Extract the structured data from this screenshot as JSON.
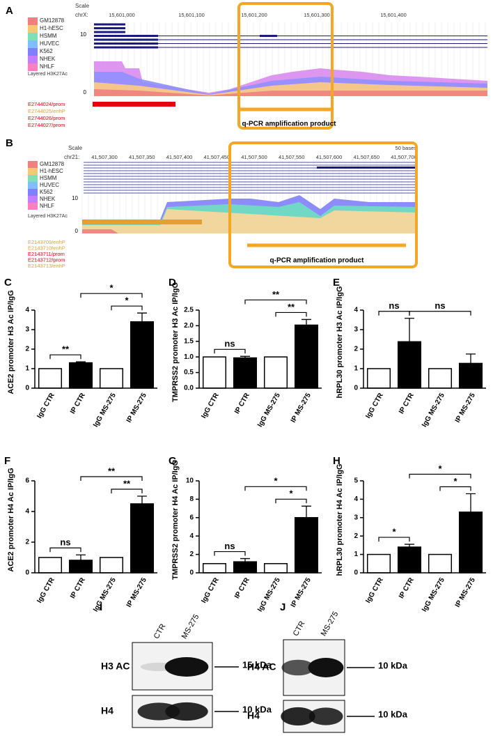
{
  "browser_tracks": [
    {
      "panel": "A",
      "scale_label": "Scale",
      "chrom": "chrX:",
      "positions": [
        "15,601,000",
        "15,601,100",
        "15,601,200",
        "15,601,300",
        "15,601,400"
      ],
      "cell_lines": [
        {
          "name": "GM12878",
          "color": "#f08080"
        },
        {
          "name": "H1-hESC",
          "color": "#f7c873"
        },
        {
          "name": "HSMM",
          "color": "#7fe0b8"
        },
        {
          "name": "HUVEC",
          "color": "#7fbfff"
        },
        {
          "name": "K562",
          "color": "#8080ff"
        },
        {
          "name": "NHEK",
          "color": "#c77dff"
        },
        {
          "name": "NHLF",
          "color": "#ff80c0"
        }
      ],
      "track_label": "Layered H3K27Ac",
      "axis_labels": [
        10,
        0
      ],
      "elements": [
        {
          "label": "E2744024/prom",
          "color": "#e8000b"
        },
        {
          "label": "E2744025/enhP",
          "color": "#e6a030"
        },
        {
          "label": "E2744026/prom",
          "color": "#e8000b"
        },
        {
          "label": "E2744027/prom",
          "color": "#e8000b"
        }
      ],
      "amplicon_label": "q-PCR amplification product",
      "highlight_color": "#f5a623"
    },
    {
      "panel": "B",
      "scale_label": "Scale",
      "chrom": "chr21:",
      "scale_bar": "50 bases",
      "positions": [
        "41,507,300",
        "41,507,350",
        "41,507,400",
        "41,507,450",
        "41,507,500",
        "41,507,550",
        "41,507,600",
        "41,507,650",
        "41,507,700"
      ],
      "cell_lines": [
        {
          "name": "GM12878",
          "color": "#f08080"
        },
        {
          "name": "H1-hESC",
          "color": "#f7c873"
        },
        {
          "name": "HSMM",
          "color": "#7fe0b8"
        },
        {
          "name": "HUVEC",
          "color": "#7fbfff"
        },
        {
          "name": "K562",
          "color": "#8080ff"
        },
        {
          "name": "NHEK",
          "color": "#c77dff"
        },
        {
          "name": "NHLF",
          "color": "#ff80c0"
        }
      ],
      "track_label": "Layered H3K27Ac",
      "axis_labels": [
        10,
        0
      ],
      "elements": [
        {
          "label": "E2143709/enhP",
          "color": "#e6a030"
        },
        {
          "label": "E2143710/enhP",
          "color": "#e6a030"
        },
        {
          "label": "E2143711/prom",
          "color": "#e8000b"
        },
        {
          "label": "E2143712/prom",
          "color": "#e8000b"
        },
        {
          "label": "E2143713/enhP",
          "color": "#e6a030"
        }
      ],
      "amplicon_label": "q-PCR amplification product",
      "highlight_color": "#f5a623"
    }
  ],
  "chart_data": [
    {
      "type": "bar",
      "panel": "C",
      "ylabel": "ACE2 promoter H3 Ac IP/IgG",
      "categories": [
        "IgG CTR",
        "IP CTR",
        "IgG MS-275",
        "IP MS-275"
      ],
      "values": [
        1,
        1.3,
        1,
        3.4
      ],
      "errors": [
        null,
        0.05,
        null,
        0.45
      ],
      "colors": [
        "#ffffff",
        "#000000",
        "#ffffff",
        "#000000"
      ],
      "ylim": [
        0,
        4
      ],
      "yticks": [
        0,
        1,
        2,
        3,
        4
      ],
      "annotations": [
        {
          "from": 0,
          "to": 1,
          "label": "**"
        },
        {
          "from": 2,
          "to": 3,
          "label": "*"
        },
        {
          "from": 1,
          "to": 3,
          "label": "*"
        }
      ]
    },
    {
      "type": "bar",
      "panel": "D",
      "ylabel": "TMPRSS2 promoter H3 Ac IP/IgG",
      "categories": [
        "IgG CTR",
        "IP CTR",
        "IgG MS-275",
        "IP MS-275"
      ],
      "values": [
        1,
        0.97,
        1,
        2.02
      ],
      "errors": [
        null,
        0.05,
        null,
        0.18
      ],
      "colors": [
        "#ffffff",
        "#000000",
        "#ffffff",
        "#000000"
      ],
      "ylim": [
        0,
        2.5
      ],
      "yticks": [
        {
          "value": 0,
          "label": "0.0"
        },
        0.5,
        {
          "value": 1,
          "label": "1.0"
        },
        1.5,
        {
          "value": 2,
          "label": "2.0"
        },
        2.5
      ],
      "annotations": [
        {
          "from": 0,
          "to": 1,
          "label": "ns"
        },
        {
          "from": 2,
          "to": 3,
          "label": "**"
        },
        {
          "from": 1,
          "to": 3,
          "label": "**"
        }
      ]
    },
    {
      "type": "bar",
      "panel": "E",
      "ylabel": "hRPL30 promoter H3 Ac IP/IgG",
      "categories": [
        "IgG CTR",
        "IP CTR",
        "IgG MS-275",
        "IP MS-275"
      ],
      "values": [
        1,
        2.38,
        1,
        1.27
      ],
      "errors": [
        null,
        1.2,
        null,
        0.48
      ],
      "colors": [
        "#ffffff",
        "#000000",
        "#ffffff",
        "#000000"
      ],
      "ylim": [
        0,
        4
      ],
      "yticks": [
        0,
        1,
        2,
        3,
        4
      ],
      "annotations": [
        {
          "from": 0,
          "to": 1,
          "label": "ns"
        },
        {
          "from": 1,
          "to": 3,
          "label": "ns"
        }
      ]
    },
    {
      "type": "bar",
      "panel": "F",
      "ylabel": "ACE2 promoter H4 Ac IP/IgG",
      "categories": [
        "IgG CTR",
        "IP CTR",
        "IgG MS-275",
        "IP MS-275"
      ],
      "values": [
        1,
        0.82,
        1,
        4.5
      ],
      "errors": [
        null,
        0.35,
        null,
        0.5
      ],
      "colors": [
        "#ffffff",
        "#000000",
        "#ffffff",
        "#000000"
      ],
      "ylim": [
        0,
        6
      ],
      "yticks": [
        0,
        2,
        4,
        6
      ],
      "annotations": [
        {
          "from": 0,
          "to": 1,
          "label": "ns"
        },
        {
          "from": 2,
          "to": 3,
          "label": "**"
        },
        {
          "from": 1,
          "to": 3,
          "label": "**"
        }
      ]
    },
    {
      "type": "bar",
      "panel": "G",
      "ylabel": "TMPRSS2 promoter H4 Ac IP/IgG",
      "categories": [
        "IgG CTR",
        "IP CTR",
        "IgG MS-275",
        "IP MS-275"
      ],
      "values": [
        1,
        1.2,
        1,
        6
      ],
      "errors": [
        null,
        0.35,
        null,
        1.25
      ],
      "colors": [
        "#ffffff",
        "#000000",
        "#ffffff",
        "#000000"
      ],
      "ylim": [
        0,
        10
      ],
      "yticks": [
        0,
        2,
        4,
        6,
        8,
        10
      ],
      "annotations": [
        {
          "from": 0,
          "to": 1,
          "label": "ns"
        },
        {
          "from": 2,
          "to": 3,
          "label": "*"
        },
        {
          "from": 1,
          "to": 3,
          "label": "*"
        }
      ]
    },
    {
      "type": "bar",
      "panel": "H",
      "ylabel": "hRPL30 promoter H4 Ac IP/IgG",
      "categories": [
        "IgG CTR",
        "IP CTR",
        "IgG MS-275",
        "IP MS-275"
      ],
      "values": [
        1,
        1.4,
        1,
        3.3
      ],
      "errors": [
        null,
        0.15,
        null,
        1.0
      ],
      "colors": [
        "#ffffff",
        "#000000",
        "#ffffff",
        "#000000"
      ],
      "ylim": [
        0,
        5
      ],
      "yticks": [
        0,
        1,
        2,
        3,
        4,
        5
      ],
      "annotations": [
        {
          "from": 0,
          "to": 1,
          "label": "*"
        },
        {
          "from": 2,
          "to": 3,
          "label": "*"
        },
        {
          "from": 1,
          "to": 3,
          "label": "*"
        }
      ]
    }
  ],
  "blots": [
    {
      "panel": "I",
      "lanes": [
        "CTR",
        "MS-275"
      ],
      "rows": [
        {
          "label": "H3 AC",
          "size": "15 kDa"
        },
        {
          "label": "H4",
          "size": "10 kDa"
        }
      ]
    },
    {
      "panel": "J",
      "lanes": [
        "CTR",
        "MS-275"
      ],
      "rows": [
        {
          "label": "H4 AC",
          "size": "10 kDa"
        },
        {
          "label": "H4",
          "size": "10 kDa"
        }
      ]
    }
  ]
}
